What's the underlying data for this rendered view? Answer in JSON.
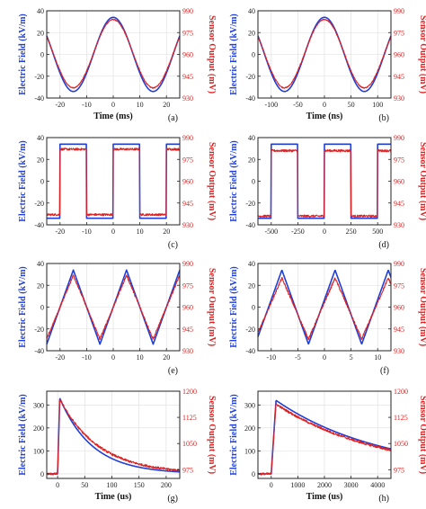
{
  "colors": {
    "field": "#1f3fd8",
    "sensor": "#e02020",
    "right_axis": "#e02020",
    "left_label": "#1f3fd8",
    "axis": "#222222",
    "grid": "#dddddd"
  },
  "chart_data": [
    {
      "panel_label": "(a)",
      "type": "line",
      "xlabel": "Time (ms)",
      "ylabel": "Electric Field (kV/m)",
      "y2label": "Sensor Output (mV)",
      "xlim": [
        -25,
        25
      ],
      "xticks": [
        -20,
        -10,
        0,
        10,
        20
      ],
      "ylim": [
        -40,
        40
      ],
      "yticks": [
        -40,
        -20,
        0,
        20,
        40
      ],
      "y2lim": [
        930,
        990
      ],
      "y2ticks": [
        930,
        945,
        960,
        975,
        990
      ],
      "grid": true,
      "waveform": "sine",
      "period": 30,
      "phase": 0,
      "series": [
        {
          "role": "field",
          "axis": "left",
          "amplitude": 34,
          "offset": 0
        },
        {
          "role": "sensor",
          "axis": "right",
          "amplitude": 23.5,
          "offset": 960.5
        }
      ]
    },
    {
      "panel_label": "(b)",
      "type": "line",
      "xlabel": "Time (ns)",
      "ylabel": "Electric Field (kV/m)",
      "y2label": "Sensor Output (mV)",
      "xlim": [
        -125,
        125
      ],
      "xticks": [
        -100,
        -50,
        0,
        50,
        100
      ],
      "ylim": [
        -40,
        40
      ],
      "yticks": [
        -40,
        -20,
        0,
        20,
        40
      ],
      "y2lim": [
        930,
        990
      ],
      "y2ticks": [
        930,
        945,
        960,
        975,
        990
      ],
      "grid": true,
      "waveform": "sine",
      "period": 150,
      "phase": 0,
      "series": [
        {
          "role": "field",
          "axis": "left",
          "amplitude": 34,
          "offset": 0
        },
        {
          "role": "sensor",
          "axis": "right",
          "amplitude": 23.5,
          "offset": 960.5
        }
      ]
    },
    {
      "panel_label": "(c)",
      "type": "line",
      "xlabel": "",
      "ylabel": "Electric Field (kV/m)",
      "y2label": "Sensor Output (mV)",
      "xlim": [
        -25,
        25
      ],
      "xticks": [
        -20,
        -10,
        0,
        10,
        20
      ],
      "ylim": [
        -40,
        40
      ],
      "yticks": [
        -40,
        -20,
        0,
        20,
        40
      ],
      "y2lim": [
        930,
        990
      ],
      "y2ticks": [
        930,
        945,
        960,
        975,
        990
      ],
      "grid": false,
      "waveform": "square",
      "period": 20,
      "phase": 0,
      "series": [
        {
          "role": "field",
          "axis": "left",
          "high": 34,
          "low": -34
        },
        {
          "role": "sensor",
          "axis": "right",
          "high": 982,
          "low": 937
        }
      ]
    },
    {
      "panel_label": "(d)",
      "type": "line",
      "xlabel": "",
      "ylabel": "Electric Field (kV/m)",
      "y2label": "Sensor Output (mV)",
      "xlim": [
        -625,
        625
      ],
      "xticks": [
        -500,
        -250,
        0,
        250,
        500
      ],
      "ylim": [
        -40,
        40
      ],
      "yticks": [
        -40,
        -20,
        0,
        20,
        40
      ],
      "y2lim": [
        930,
        990
      ],
      "y2ticks": [
        930,
        945,
        960,
        975,
        990
      ],
      "grid": false,
      "waveform": "square",
      "period": 500,
      "phase": 0,
      "series": [
        {
          "role": "field",
          "axis": "left",
          "high": 34,
          "low": -34
        },
        {
          "role": "sensor",
          "axis": "right",
          "high": 981,
          "low": 936
        }
      ]
    },
    {
      "panel_label": "(e)",
      "type": "line",
      "xlabel": "",
      "ylabel": "Electric Field (kV/m)",
      "y2label": "Sensor Output (mV)",
      "xlim": [
        -25,
        25
      ],
      "xticks": [
        -20,
        -10,
        0,
        10,
        20
      ],
      "ylim": [
        -40,
        40
      ],
      "yticks": [
        -40,
        -20,
        0,
        20,
        40
      ],
      "y2lim": [
        930,
        990
      ],
      "y2ticks": [
        930,
        945,
        960,
        975,
        990
      ],
      "grid": true,
      "waveform": "triangle",
      "period": 20,
      "phase": 5,
      "series": [
        {
          "role": "field",
          "axis": "left",
          "amplitude": 34,
          "offset": 0
        },
        {
          "role": "sensor",
          "axis": "right",
          "amplitude": 22,
          "offset": 960
        }
      ]
    },
    {
      "panel_label": "(f)",
      "type": "line",
      "xlabel": "",
      "ylabel": "Electric Field (kV/m)",
      "y2label": "Sensor Output (mV)",
      "xlim": [
        -12.5,
        12.5
      ],
      "xticks": [
        -10,
        -5,
        0,
        5,
        10
      ],
      "ylim": [
        -40,
        40
      ],
      "yticks": [
        -40,
        -20,
        0,
        20,
        40
      ],
      "y2lim": [
        930,
        990
      ],
      "y2ticks": [
        930,
        945,
        960,
        975,
        990
      ],
      "grid": true,
      "waveform": "triangle",
      "period": 10,
      "phase": 2,
      "series": [
        {
          "role": "field",
          "axis": "left",
          "amplitude": 34,
          "offset": 0
        },
        {
          "role": "sensor",
          "axis": "right",
          "amplitude": 21,
          "offset": 959
        }
      ]
    },
    {
      "panel_label": "(g)",
      "type": "line",
      "xlabel": "Time (us)",
      "ylabel": "Electric Field (kV/m)",
      "y2label": "Sensor Output (mV)",
      "xlim": [
        -20,
        225
      ],
      "xticks": [
        0,
        50,
        100,
        150,
        200
      ],
      "ylim": [
        -20,
        360
      ],
      "yticks": [
        0,
        100,
        200,
        300
      ],
      "y2lim": [
        950,
        1200
      ],
      "y2ticks": [
        975,
        1050,
        1125,
        1200
      ],
      "grid": true,
      "waveform": "pulse",
      "t0": 0,
      "rise": 4,
      "tau_field": 60,
      "tau_sensor": 72,
      "series": [
        {
          "role": "field",
          "axis": "left",
          "peak": 330,
          "base": 0
        },
        {
          "role": "sensor",
          "axis": "right",
          "peak": 1177,
          "base": 963
        }
      ]
    },
    {
      "panel_label": "(h)",
      "type": "line",
      "xlabel": "Time (us)",
      "ylabel": "Electric Field (kV/m)",
      "y2label": "Sensor Output (mV)",
      "xlim": [
        -500,
        4500
      ],
      "xticks": [
        0,
        1000,
        2000,
        3000,
        4000
      ],
      "ylim": [
        -20,
        360
      ],
      "yticks": [
        0,
        100,
        200,
        300
      ],
      "y2lim": [
        950,
        1200
      ],
      "y2ticks": [
        975,
        1050,
        1125,
        1200
      ],
      "grid": true,
      "waveform": "pulse",
      "t0": 0,
      "rise": 180,
      "tau_field": 4000,
      "tau_sensor": 4000,
      "series": [
        {
          "role": "field",
          "axis": "left",
          "peak": 320,
          "base": 0
        },
        {
          "role": "sensor",
          "axis": "right",
          "peak": 1163,
          "base": 963
        }
      ]
    }
  ]
}
